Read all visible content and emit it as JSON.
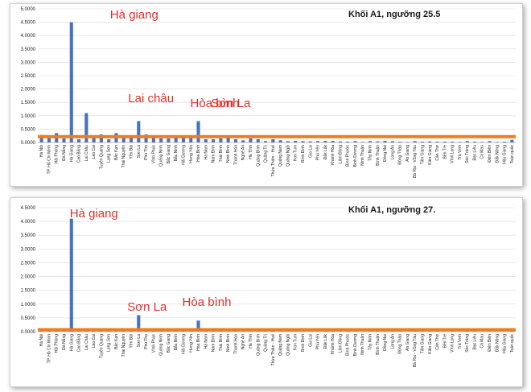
{
  "chart_data": [
    {
      "type": "bar",
      "title": "Khối A1, ngưỡng 25.5",
      "xlabel": "",
      "ylabel": "",
      "ylim": [
        0,
        5
      ],
      "yticks": [
        "0.0000",
        "0.5000",
        "1.0000",
        "1.5000",
        "2.0000",
        "2.5000",
        "3.0000",
        "3.5000",
        "4.0000",
        "4.5000",
        "5.0000"
      ],
      "grid": true,
      "bar_color": "#4472c4",
      "reference_line": {
        "value": 0.22,
        "color": "#ee7d22"
      },
      "categories": [
        "Hà Nội",
        "TP. Hồ Chí Minh",
        "Hải Phòng",
        "Đà Nẵng",
        "Hà Giang",
        "Cao Bằng",
        "Lai Châu",
        "Lào Cai",
        "Tuyên Quang",
        "Lạng Sơn",
        "Bắc Kạn",
        "Thái Nguyên",
        "Yên Bái",
        "Sơn La",
        "Phú Thọ",
        "Vĩnh Phúc",
        "Quảng Ninh",
        "Bắc Giang",
        "Bắc Ninh",
        "Hải Dương",
        "Hưng Yên",
        "Hòa Bình",
        "Hà Nam",
        "Nam Định",
        "Thái Bình",
        "Ninh Bình",
        "Thanh Hóa",
        "Nghệ An",
        "Hà Tĩnh",
        "Quảng Bình",
        "Quảng Trị",
        "Thừa Thiên - Huế",
        "Quảng Nam",
        "Quảng Ngãi",
        "Kon Tum",
        "Bình Định",
        "Gia Lai",
        "Phú Yên",
        "Đắk Lắk",
        "Khánh Hòa",
        "Lâm Đồng",
        "Bình Phước",
        "Bình Dương",
        "Ninh Thuận",
        "Tây Ninh",
        "Bình Thuận",
        "Đồng Nai",
        "Long An",
        "Đồng Tháp",
        "An Giang",
        "Bà Rịa - Vũng Tàu",
        "Tiền Giang",
        "Kiên Giang",
        "Cần Thơ",
        "Bến Tre",
        "Vĩnh Long",
        "Trà Vinh",
        "Sóc Trăng",
        "Bạc Liêu",
        "Cà Mau",
        "Điện Biên",
        "Đắk Nông",
        "Hậu Giang",
        "Toàn quốc"
      ],
      "values": [
        0.28,
        0.18,
        0.35,
        0.15,
        4.5,
        0.12,
        1.1,
        0.18,
        0.3,
        0.12,
        0.35,
        0.22,
        0.25,
        0.8,
        0.3,
        0.2,
        0.15,
        0.15,
        0.2,
        0.22,
        0.22,
        0.8,
        0.12,
        0.12,
        0.15,
        0.2,
        0.12,
        0.08,
        0.15,
        0.12,
        0.05,
        0.12,
        0.08,
        0.05,
        0.06,
        0.05,
        0.04,
        0.05,
        0.06,
        0.06,
        0.04,
        0.03,
        0.05,
        0.02,
        0.05,
        0.04,
        0.06,
        0.05,
        0.03,
        0.02,
        0.05,
        0.03,
        0.04,
        0.03,
        0.03,
        0.03,
        0.02,
        0.05,
        0.03,
        0.02,
        0.05,
        0.02,
        0.03,
        0.1
      ],
      "annotations": [
        {
          "text": "Hà giang",
          "category": "Hà Giang"
        },
        {
          "text": "Lai châu",
          "category": "Lai Châu"
        },
        {
          "text": "Sơn La",
          "category": "Sơn La"
        },
        {
          "text": "Hòa bình",
          "category": "Hòa Bình"
        }
      ]
    },
    {
      "type": "bar",
      "title": "Khối A1, ngưỡng 27.",
      "xlabel": "",
      "ylabel": "",
      "ylim": [
        0,
        4.5
      ],
      "yticks": [
        "0.0000",
        "0.5000",
        "1.0000",
        "1.5000",
        "2.0000",
        "2.5000",
        "3.0000",
        "3.5000",
        "4.0000",
        "4.5000"
      ],
      "grid": true,
      "bar_color": "#4472c4",
      "reference_line": {
        "value": 0.07,
        "color": "#ee7d22"
      },
      "categories": [
        "Hà Nội",
        "TP. Hồ Chí Minh",
        "Hải Phòng",
        "Đà Nẵng",
        "Hà Giang",
        "Cao Bằng",
        "Lai Châu",
        "Lào Cai",
        "Tuyên Quang",
        "Lạng Sơn",
        "Bắc Kạn",
        "Thái Nguyên",
        "Yên Bái",
        "Sơn La",
        "Phú Thọ",
        "Vĩnh Phúc",
        "Quảng Ninh",
        "Bắc Giang",
        "Bắc Ninh",
        "Hải Dương",
        "Hưng Yên",
        "Hòa Bình",
        "Hà Nam",
        "Nam Định",
        "Thái Bình",
        "Ninh Bình",
        "Thanh Hóa",
        "Nghệ An",
        "Hà Tĩnh",
        "Quảng Bình",
        "Quảng Trị",
        "Thừa Thiên - Huế",
        "Quảng Nam",
        "Quảng Ngãi",
        "Kon Tum",
        "Bình Định",
        "Gia Lai",
        "Phú Yên",
        "Đắk Lắk",
        "Khánh Hòa",
        "Lâm Đồng",
        "Bình Phước",
        "Bình Dương",
        "Ninh Thuận",
        "Tây Ninh",
        "Bình Thuận",
        "Đồng Nai",
        "Long An",
        "Đồng Tháp",
        "An Giang",
        "Bà Rịa - Vũng Tàu",
        "Tiền Giang",
        "Kiên Giang",
        "Cần Thơ",
        "Bến Tre",
        "Vĩnh Long",
        "Trà Vinh",
        "Sóc Trăng",
        "Bạc Liêu",
        "Cà Mau",
        "Điện Biên",
        "Đắk Nông",
        "Hậu Giang",
        "Toàn quốc"
      ],
      "values": [
        0.03,
        0.02,
        0.04,
        0.02,
        4.1,
        0.02,
        0.12,
        0.03,
        0.05,
        0.02,
        0.04,
        0.03,
        0.02,
        0.6,
        0.03,
        0.02,
        0.02,
        0.02,
        0.03,
        0.03,
        0.02,
        0.4,
        0.02,
        0.02,
        0.02,
        0.02,
        0.02,
        0.01,
        0.02,
        0.02,
        0.01,
        0.02,
        0.01,
        0.01,
        0.01,
        0.01,
        0.01,
        0.01,
        0.01,
        0.01,
        0.01,
        0.01,
        0.01,
        0.0,
        0.01,
        0.01,
        0.01,
        0.01,
        0.01,
        0.0,
        0.01,
        0.01,
        0.01,
        0.01,
        0.0,
        0.01,
        0.0,
        0.04,
        0.01,
        0.0,
        0.01,
        0.0,
        0.01,
        0.03
      ],
      "annotations": [
        {
          "text": "Hà giang",
          "category": "Hà Giang"
        },
        {
          "text": "Sơn La",
          "category": "Sơn La"
        },
        {
          "text": "Hòa bình",
          "category": "Hòa Bình"
        }
      ]
    }
  ]
}
